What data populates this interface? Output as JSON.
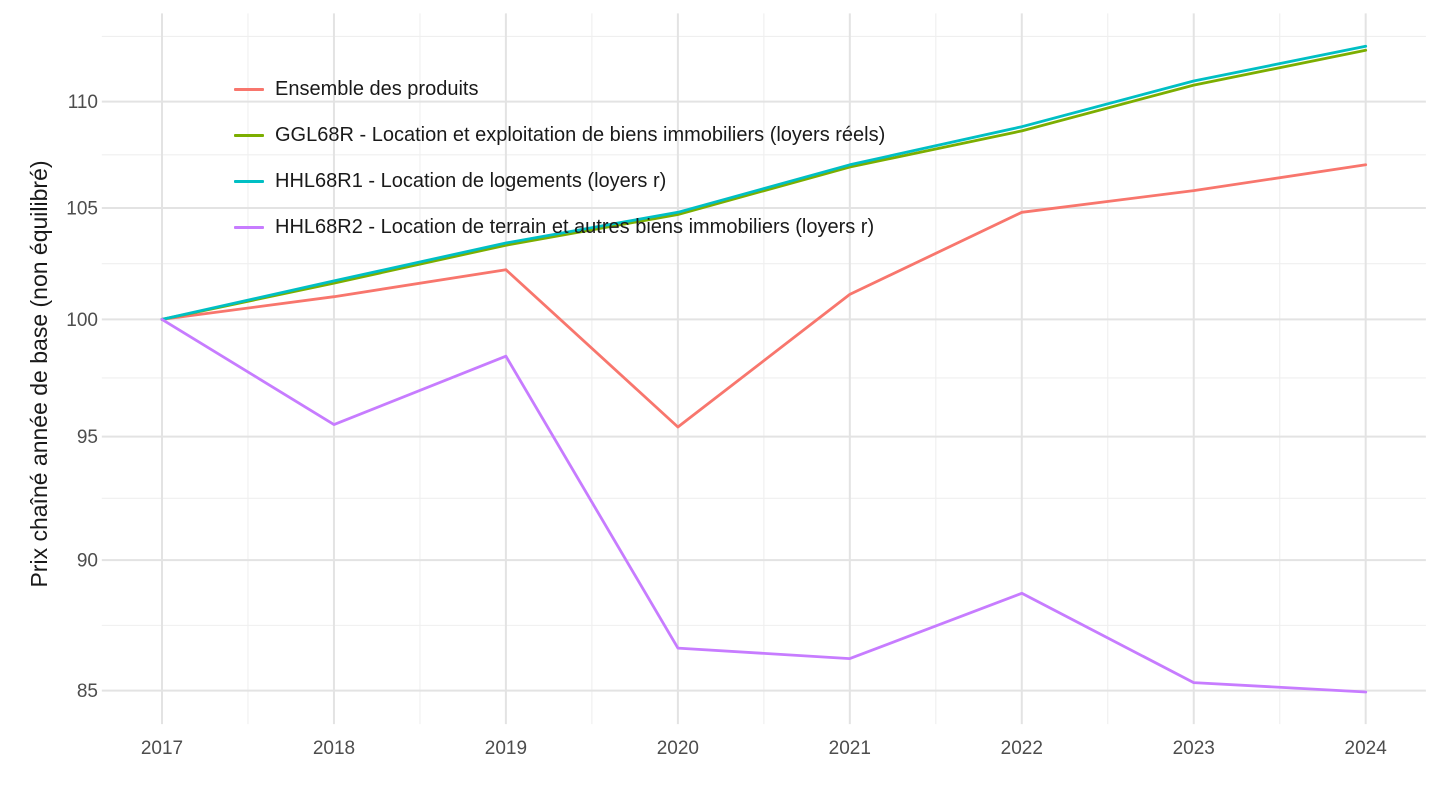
{
  "figure": {
    "background": "#FFFFFF",
    "y_axis_title": "Prix chaîné année de base (non équilibré)",
    "x_tick_labels": [
      "2017",
      "2018",
      "2019",
      "2020",
      "2021",
      "2022",
      "2023",
      "2024"
    ],
    "y_tick_labels": [
      "85",
      "90",
      "95",
      "100",
      "105",
      "110"
    ],
    "tick_text_color": "#4D4D4D",
    "gridline_major_color": "#E3E3E3",
    "gridline_minor_color": "#EFEFEF"
  },
  "chart_data": {
    "type": "line",
    "x": [
      2017,
      2018,
      2019,
      2020,
      2021,
      2022,
      2023,
      2024
    ],
    "series": [
      {
        "name": "Ensemble des produits",
        "color": "#F8766D",
        "values": [
          100,
          101.0,
          102.2,
          95.4,
          101.1,
          104.8,
          105.8,
          107.0
        ]
      },
      {
        "name": "GGL68R - Location et exploitation de biens immobiliers (loyers réels)",
        "color": "#7CAE00",
        "values": [
          100,
          101.6,
          103.3,
          104.7,
          106.9,
          108.6,
          110.8,
          112.5
        ]
      },
      {
        "name": "HHL68R1 - Location de logements (loyers r)",
        "color": "#00BFC4",
        "values": [
          100,
          101.7,
          103.4,
          104.8,
          107.0,
          108.8,
          111.0,
          112.7
        ]
      },
      {
        "name": "HHL68R2 - Location de terrain et autres biens immobiliers (loyers r)",
        "color": "#C77CFF",
        "values": [
          100,
          95.5,
          98.4,
          86.6,
          86.2,
          88.7,
          85.3,
          84.95
        ]
      }
    ],
    "title": "",
    "xlabel": "",
    "ylabel": "Prix chaîné année de base (non équilibré)",
    "y_scale": "log",
    "y_major_breaks": [
      85,
      90,
      95,
      100,
      105,
      110
    ],
    "ylim": [
      83.76,
      114.33
    ],
    "xlim": [
      2016.65,
      2024.35
    ],
    "grid": true,
    "legend_position": "inside-top-left"
  }
}
